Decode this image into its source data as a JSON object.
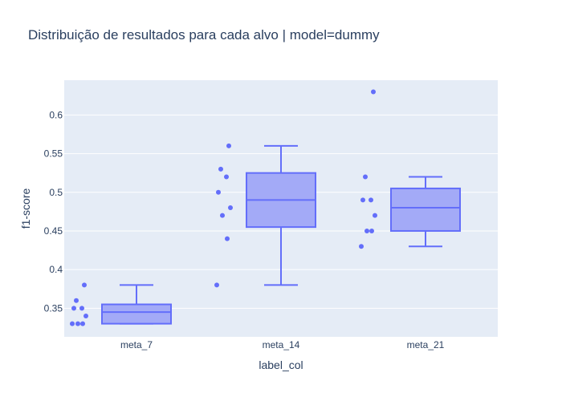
{
  "chart_data": {
    "type": "box",
    "title": "Distribuição de resultados para cada alvo | model=dummy",
    "xlabel": "label_col",
    "ylabel": "f1-score",
    "categories": [
      "meta_7",
      "meta_14",
      "meta_21"
    ],
    "ylim": [
      0.313,
      0.645
    ],
    "yticks": [
      0.35,
      0.4,
      0.45,
      0.5,
      0.55,
      0.6
    ],
    "ytick_labels": [
      "0.35",
      "0.4",
      "0.45",
      "0.5",
      "0.55",
      "0.6"
    ],
    "grid": true,
    "legend": "none",
    "colors": {
      "plot_bg": "#e5ecf6",
      "box_line": "#636efa",
      "box_fill": "#a3aaf7",
      "text": "#2a3f5f",
      "grid": "#ffffff"
    },
    "series": [
      {
        "category": "meta_7",
        "min": 0.33,
        "q1": 0.33,
        "median": 0.345,
        "q3": 0.355,
        "max": 0.38,
        "points": [
          0.38,
          0.36,
          0.35,
          0.35,
          0.34,
          0.33,
          0.33,
          0.33
        ]
      },
      {
        "category": "meta_14",
        "min": 0.38,
        "q1": 0.455,
        "median": 0.49,
        "q3": 0.525,
        "max": 0.56,
        "points": [
          0.56,
          0.53,
          0.52,
          0.5,
          0.48,
          0.47,
          0.44,
          0.38
        ]
      },
      {
        "category": "meta_21",
        "min": 0.43,
        "q1": 0.45,
        "median": 0.48,
        "q3": 0.505,
        "max": 0.52,
        "points": [
          0.63,
          0.52,
          0.49,
          0.49,
          0.47,
          0.45,
          0.45,
          0.43
        ]
      }
    ]
  }
}
